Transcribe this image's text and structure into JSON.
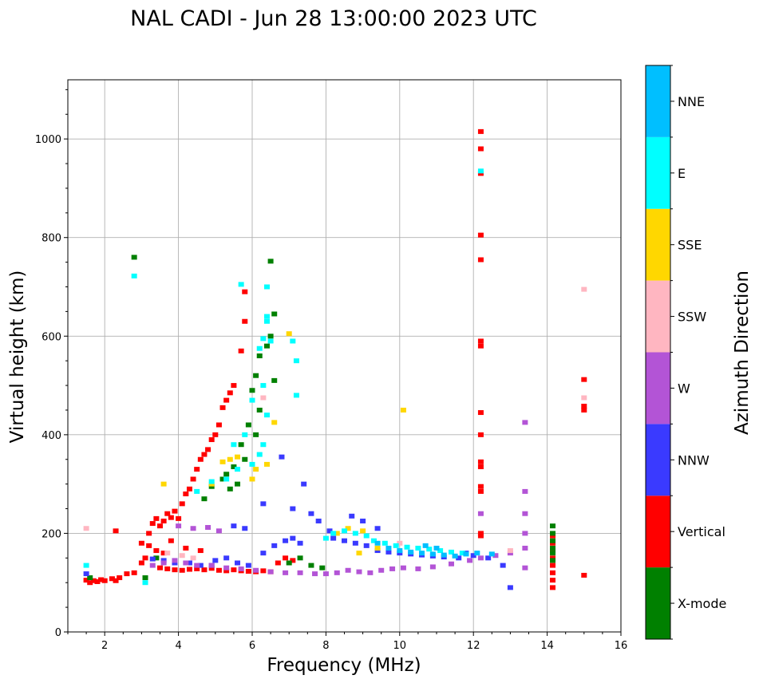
{
  "chart_data": {
    "type": "scatter",
    "title": "NAL CADI - Jun 28 13:00:00 2023 UTC",
    "xlabel": "Frequency (MHz)",
    "ylabel": "Virtual height (km)",
    "xlim": [
      1,
      16
    ],
    "ylim": [
      0,
      1120
    ],
    "xticks": [
      2,
      4,
      6,
      8,
      10,
      12,
      14,
      16
    ],
    "yticks": [
      0,
      200,
      400,
      600,
      800,
      1000
    ],
    "grid": true,
    "colorbar": {
      "label": "Azimuth Direction",
      "categories": [
        {
          "name": "X-mode",
          "color": "#008000"
        },
        {
          "name": "Vertical",
          "color": "#ff0000"
        },
        {
          "name": "NNW",
          "color": "#3a3aff"
        },
        {
          "name": "W",
          "color": "#b354d6"
        },
        {
          "name": "SSW",
          "color": "#ffb6c1"
        },
        {
          "name": "SSE",
          "color": "#ffd700"
        },
        {
          "name": "E",
          "color": "#00ffff"
        },
        {
          "name": "NNE",
          "color": "#00bfff"
        }
      ]
    },
    "series": [
      {
        "name": "Vertical",
        "points": [
          [
            1.5,
            105
          ],
          [
            1.6,
            100
          ],
          [
            1.7,
            104
          ],
          [
            1.8,
            102
          ],
          [
            1.9,
            106
          ],
          [
            2.0,
            104
          ],
          [
            2.2,
            108
          ],
          [
            2.3,
            104
          ],
          [
            2.4,
            110
          ],
          [
            2.6,
            118
          ],
          [
            2.8,
            120
          ],
          [
            3.0,
            140
          ],
          [
            3.1,
            150
          ],
          [
            3.2,
            200
          ],
          [
            3.3,
            220
          ],
          [
            3.4,
            230
          ],
          [
            3.5,
            215
          ],
          [
            3.6,
            225
          ],
          [
            3.7,
            240
          ],
          [
            3.8,
            232
          ],
          [
            3.9,
            245
          ],
          [
            4.0,
            230
          ],
          [
            4.1,
            260
          ],
          [
            4.2,
            280
          ],
          [
            4.3,
            290
          ],
          [
            4.4,
            310
          ],
          [
            4.5,
            330
          ],
          [
            4.6,
            350
          ],
          [
            4.7,
            360
          ],
          [
            4.8,
            370
          ],
          [
            4.9,
            390
          ],
          [
            5.0,
            400
          ],
          [
            5.1,
            420
          ],
          [
            5.2,
            455
          ],
          [
            5.3,
            470
          ],
          [
            5.4,
            485
          ],
          [
            5.5,
            500
          ],
          [
            5.7,
            570
          ],
          [
            5.8,
            630
          ],
          [
            5.8,
            690
          ],
          [
            3.5,
            130
          ],
          [
            3.7,
            128
          ],
          [
            3.9,
            126
          ],
          [
            4.1,
            125
          ],
          [
            4.3,
            127
          ],
          [
            4.5,
            128
          ],
          [
            4.7,
            126
          ],
          [
            4.9,
            129
          ],
          [
            5.1,
            125
          ],
          [
            5.3,
            124
          ],
          [
            5.5,
            126
          ],
          [
            5.7,
            124
          ],
          [
            5.9,
            123
          ],
          [
            6.1,
            122
          ],
          [
            6.3,
            124
          ],
          [
            6.5,
            122
          ],
          [
            6.7,
            140
          ],
          [
            6.9,
            150
          ],
          [
            7.1,
            145
          ],
          [
            3.0,
            180
          ],
          [
            3.2,
            175
          ],
          [
            3.4,
            165
          ],
          [
            3.6,
            160
          ],
          [
            3.8,
            185
          ],
          [
            4.2,
            170
          ],
          [
            4.6,
            165
          ],
          [
            2.3,
            205
          ],
          [
            12.2,
            1015
          ],
          [
            12.2,
            980
          ],
          [
            12.2,
            930
          ],
          [
            12.2,
            805
          ],
          [
            12.2,
            755
          ],
          [
            12.2,
            590
          ],
          [
            12.2,
            580
          ],
          [
            12.2,
            445
          ],
          [
            12.2,
            400
          ],
          [
            12.2,
            345
          ],
          [
            12.2,
            335
          ],
          [
            12.2,
            295
          ],
          [
            12.2,
            285
          ],
          [
            12.2,
            200
          ],
          [
            12.2,
            195
          ],
          [
            14.15,
            90
          ],
          [
            14.15,
            105
          ],
          [
            14.15,
            120
          ],
          [
            14.15,
            135
          ],
          [
            14.15,
            150
          ],
          [
            14.15,
            165
          ],
          [
            14.15,
            180
          ],
          [
            14.15,
            195
          ],
          [
            15.0,
            512
          ],
          [
            15.0,
            458
          ],
          [
            15.0,
            450
          ],
          [
            15.0,
            115
          ]
        ]
      },
      {
        "name": "X-mode",
        "points": [
          [
            2.8,
            760
          ],
          [
            6.5,
            752
          ],
          [
            6.6,
            645
          ],
          [
            6.5,
            600
          ],
          [
            6.4,
            580
          ],
          [
            6.2,
            560
          ],
          [
            6.1,
            520
          ],
          [
            6.0,
            490
          ],
          [
            6.6,
            510
          ],
          [
            6.2,
            450
          ],
          [
            5.9,
            420
          ],
          [
            6.1,
            400
          ],
          [
            5.7,
            380
          ],
          [
            5.8,
            350
          ],
          [
            5.5,
            335
          ],
          [
            5.3,
            320
          ],
          [
            5.6,
            300
          ],
          [
            5.4,
            290
          ],
          [
            5.2,
            310
          ],
          [
            4.9,
            295
          ],
          [
            4.7,
            270
          ],
          [
            3.4,
            150
          ],
          [
            7.0,
            140
          ],
          [
            7.3,
            150
          ],
          [
            7.6,
            135
          ],
          [
            7.9,
            130
          ],
          [
            3.1,
            110
          ],
          [
            14.15,
            215
          ],
          [
            14.15,
            200
          ],
          [
            14.15,
            185
          ],
          [
            14.15,
            170
          ],
          [
            14.15,
            160
          ],
          [
            14.15,
            145
          ],
          [
            1.6,
            110
          ]
        ]
      },
      {
        "name": "NNW",
        "points": [
          [
            1.5,
            118
          ],
          [
            4.9,
            135
          ],
          [
            5.0,
            145
          ],
          [
            5.3,
            150
          ],
          [
            5.6,
            140
          ],
          [
            5.9,
            135
          ],
          [
            6.3,
            160
          ],
          [
            6.6,
            175
          ],
          [
            6.9,
            185
          ],
          [
            7.1,
            190
          ],
          [
            7.3,
            180
          ],
          [
            7.4,
            300
          ],
          [
            6.8,
            355
          ],
          [
            6.3,
            260
          ],
          [
            7.1,
            250
          ],
          [
            7.6,
            240
          ],
          [
            7.8,
            225
          ],
          [
            8.1,
            205
          ],
          [
            8.2,
            190
          ],
          [
            8.5,
            185
          ],
          [
            8.8,
            180
          ],
          [
            9.1,
            175
          ],
          [
            9.4,
            165
          ],
          [
            9.7,
            162
          ],
          [
            10.0,
            160
          ],
          [
            10.3,
            158
          ],
          [
            10.6,
            156
          ],
          [
            10.9,
            154
          ],
          [
            11.2,
            152
          ],
          [
            11.6,
            150
          ],
          [
            11.8,
            160
          ],
          [
            12.0,
            155
          ],
          [
            12.4,
            150
          ],
          [
            12.8,
            135
          ],
          [
            13.0,
            90
          ],
          [
            5.5,
            215
          ],
          [
            5.8,
            210
          ],
          [
            3.3,
            148
          ],
          [
            3.6,
            145
          ],
          [
            3.9,
            140
          ],
          [
            4.3,
            140
          ],
          [
            4.6,
            135
          ],
          [
            8.7,
            235
          ],
          [
            9.0,
            225
          ],
          [
            9.4,
            210
          ]
        ]
      },
      {
        "name": "W",
        "points": [
          [
            3.3,
            135
          ],
          [
            3.6,
            140
          ],
          [
            3.9,
            145
          ],
          [
            4.2,
            140
          ],
          [
            4.5,
            135
          ],
          [
            4.9,
            135
          ],
          [
            5.3,
            130
          ],
          [
            5.7,
            128
          ],
          [
            6.1,
            125
          ],
          [
            6.5,
            122
          ],
          [
            6.9,
            120
          ],
          [
            7.3,
            120
          ],
          [
            7.7,
            118
          ],
          [
            8.0,
            118
          ],
          [
            8.3,
            120
          ],
          [
            8.6,
            125
          ],
          [
            8.9,
            122
          ],
          [
            9.2,
            120
          ],
          [
            9.5,
            125
          ],
          [
            9.8,
            128
          ],
          [
            10.1,
            130
          ],
          [
            10.5,
            128
          ],
          [
            10.9,
            132
          ],
          [
            11.4,
            138
          ],
          [
            11.9,
            145
          ],
          [
            12.2,
            150
          ],
          [
            12.6,
            155
          ],
          [
            13.0,
            160
          ],
          [
            13.4,
            130
          ],
          [
            13.4,
            170
          ],
          [
            13.4,
            200
          ],
          [
            13.4,
            240
          ],
          [
            13.4,
            285
          ],
          [
            13.4,
            425
          ],
          [
            12.2,
            240
          ],
          [
            4.0,
            215
          ],
          [
            4.4,
            210
          ],
          [
            4.8,
            212
          ],
          [
            5.1,
            205
          ]
        ]
      },
      {
        "name": "SSW",
        "points": [
          [
            1.5,
            210
          ],
          [
            3.7,
            160
          ],
          [
            4.1,
            155
          ],
          [
            4.4,
            150
          ],
          [
            6.3,
            475
          ],
          [
            13.0,
            165
          ],
          [
            15.0,
            695
          ],
          [
            15.0,
            475
          ],
          [
            10.0,
            180
          ]
        ]
      },
      {
        "name": "SSE",
        "points": [
          [
            3.6,
            300
          ],
          [
            4.9,
            300
          ],
          [
            5.2,
            345
          ],
          [
            5.4,
            350
          ],
          [
            5.6,
            355
          ],
          [
            6.0,
            310
          ],
          [
            6.1,
            330
          ],
          [
            6.4,
            340
          ],
          [
            6.6,
            425
          ],
          [
            7.0,
            605
          ],
          [
            8.3,
            200
          ],
          [
            8.6,
            210
          ],
          [
            9.0,
            205
          ],
          [
            10.1,
            450
          ],
          [
            8.9,
            160
          ],
          [
            9.4,
            170
          ]
        ]
      },
      {
        "name": "E",
        "points": [
          [
            2.8,
            722
          ],
          [
            5.7,
            705
          ],
          [
            6.4,
            700
          ],
          [
            6.4,
            640
          ],
          [
            6.4,
            630
          ],
          [
            6.3,
            595
          ],
          [
            6.5,
            590
          ],
          [
            6.2,
            575
          ],
          [
            6.3,
            500
          ],
          [
            6.0,
            470
          ],
          [
            6.4,
            440
          ],
          [
            6.3,
            380
          ],
          [
            6.2,
            360
          ],
          [
            6.0,
            340
          ],
          [
            5.6,
            330
          ],
          [
            5.5,
            380
          ],
          [
            5.8,
            400
          ],
          [
            5.3,
            310
          ],
          [
            4.9,
            305
          ],
          [
            4.5,
            285
          ],
          [
            7.1,
            590
          ],
          [
            7.2,
            550
          ],
          [
            7.2,
            480
          ],
          [
            8.0,
            190
          ],
          [
            8.2,
            200
          ],
          [
            8.5,
            205
          ],
          [
            8.8,
            200
          ],
          [
            9.1,
            195
          ],
          [
            9.3,
            185
          ],
          [
            9.6,
            180
          ],
          [
            9.9,
            175
          ],
          [
            10.2,
            172
          ],
          [
            10.5,
            170
          ],
          [
            10.8,
            168
          ],
          [
            11.1,
            165
          ],
          [
            11.4,
            162
          ],
          [
            11.7,
            160
          ],
          [
            12.2,
            935
          ],
          [
            1.5,
            135
          ],
          [
            3.1,
            100
          ]
        ]
      },
      {
        "name": "NNE",
        "points": [
          [
            9.4,
            180
          ],
          [
            9.7,
            170
          ],
          [
            10.0,
            165
          ],
          [
            10.3,
            162
          ],
          [
            10.6,
            160
          ],
          [
            10.9,
            158
          ],
          [
            11.2,
            156
          ],
          [
            11.5,
            154
          ],
          [
            11.8,
            158
          ],
          [
            12.1,
            160
          ],
          [
            12.5,
            158
          ],
          [
            10.7,
            175
          ],
          [
            11.0,
            170
          ]
        ]
      }
    ]
  }
}
